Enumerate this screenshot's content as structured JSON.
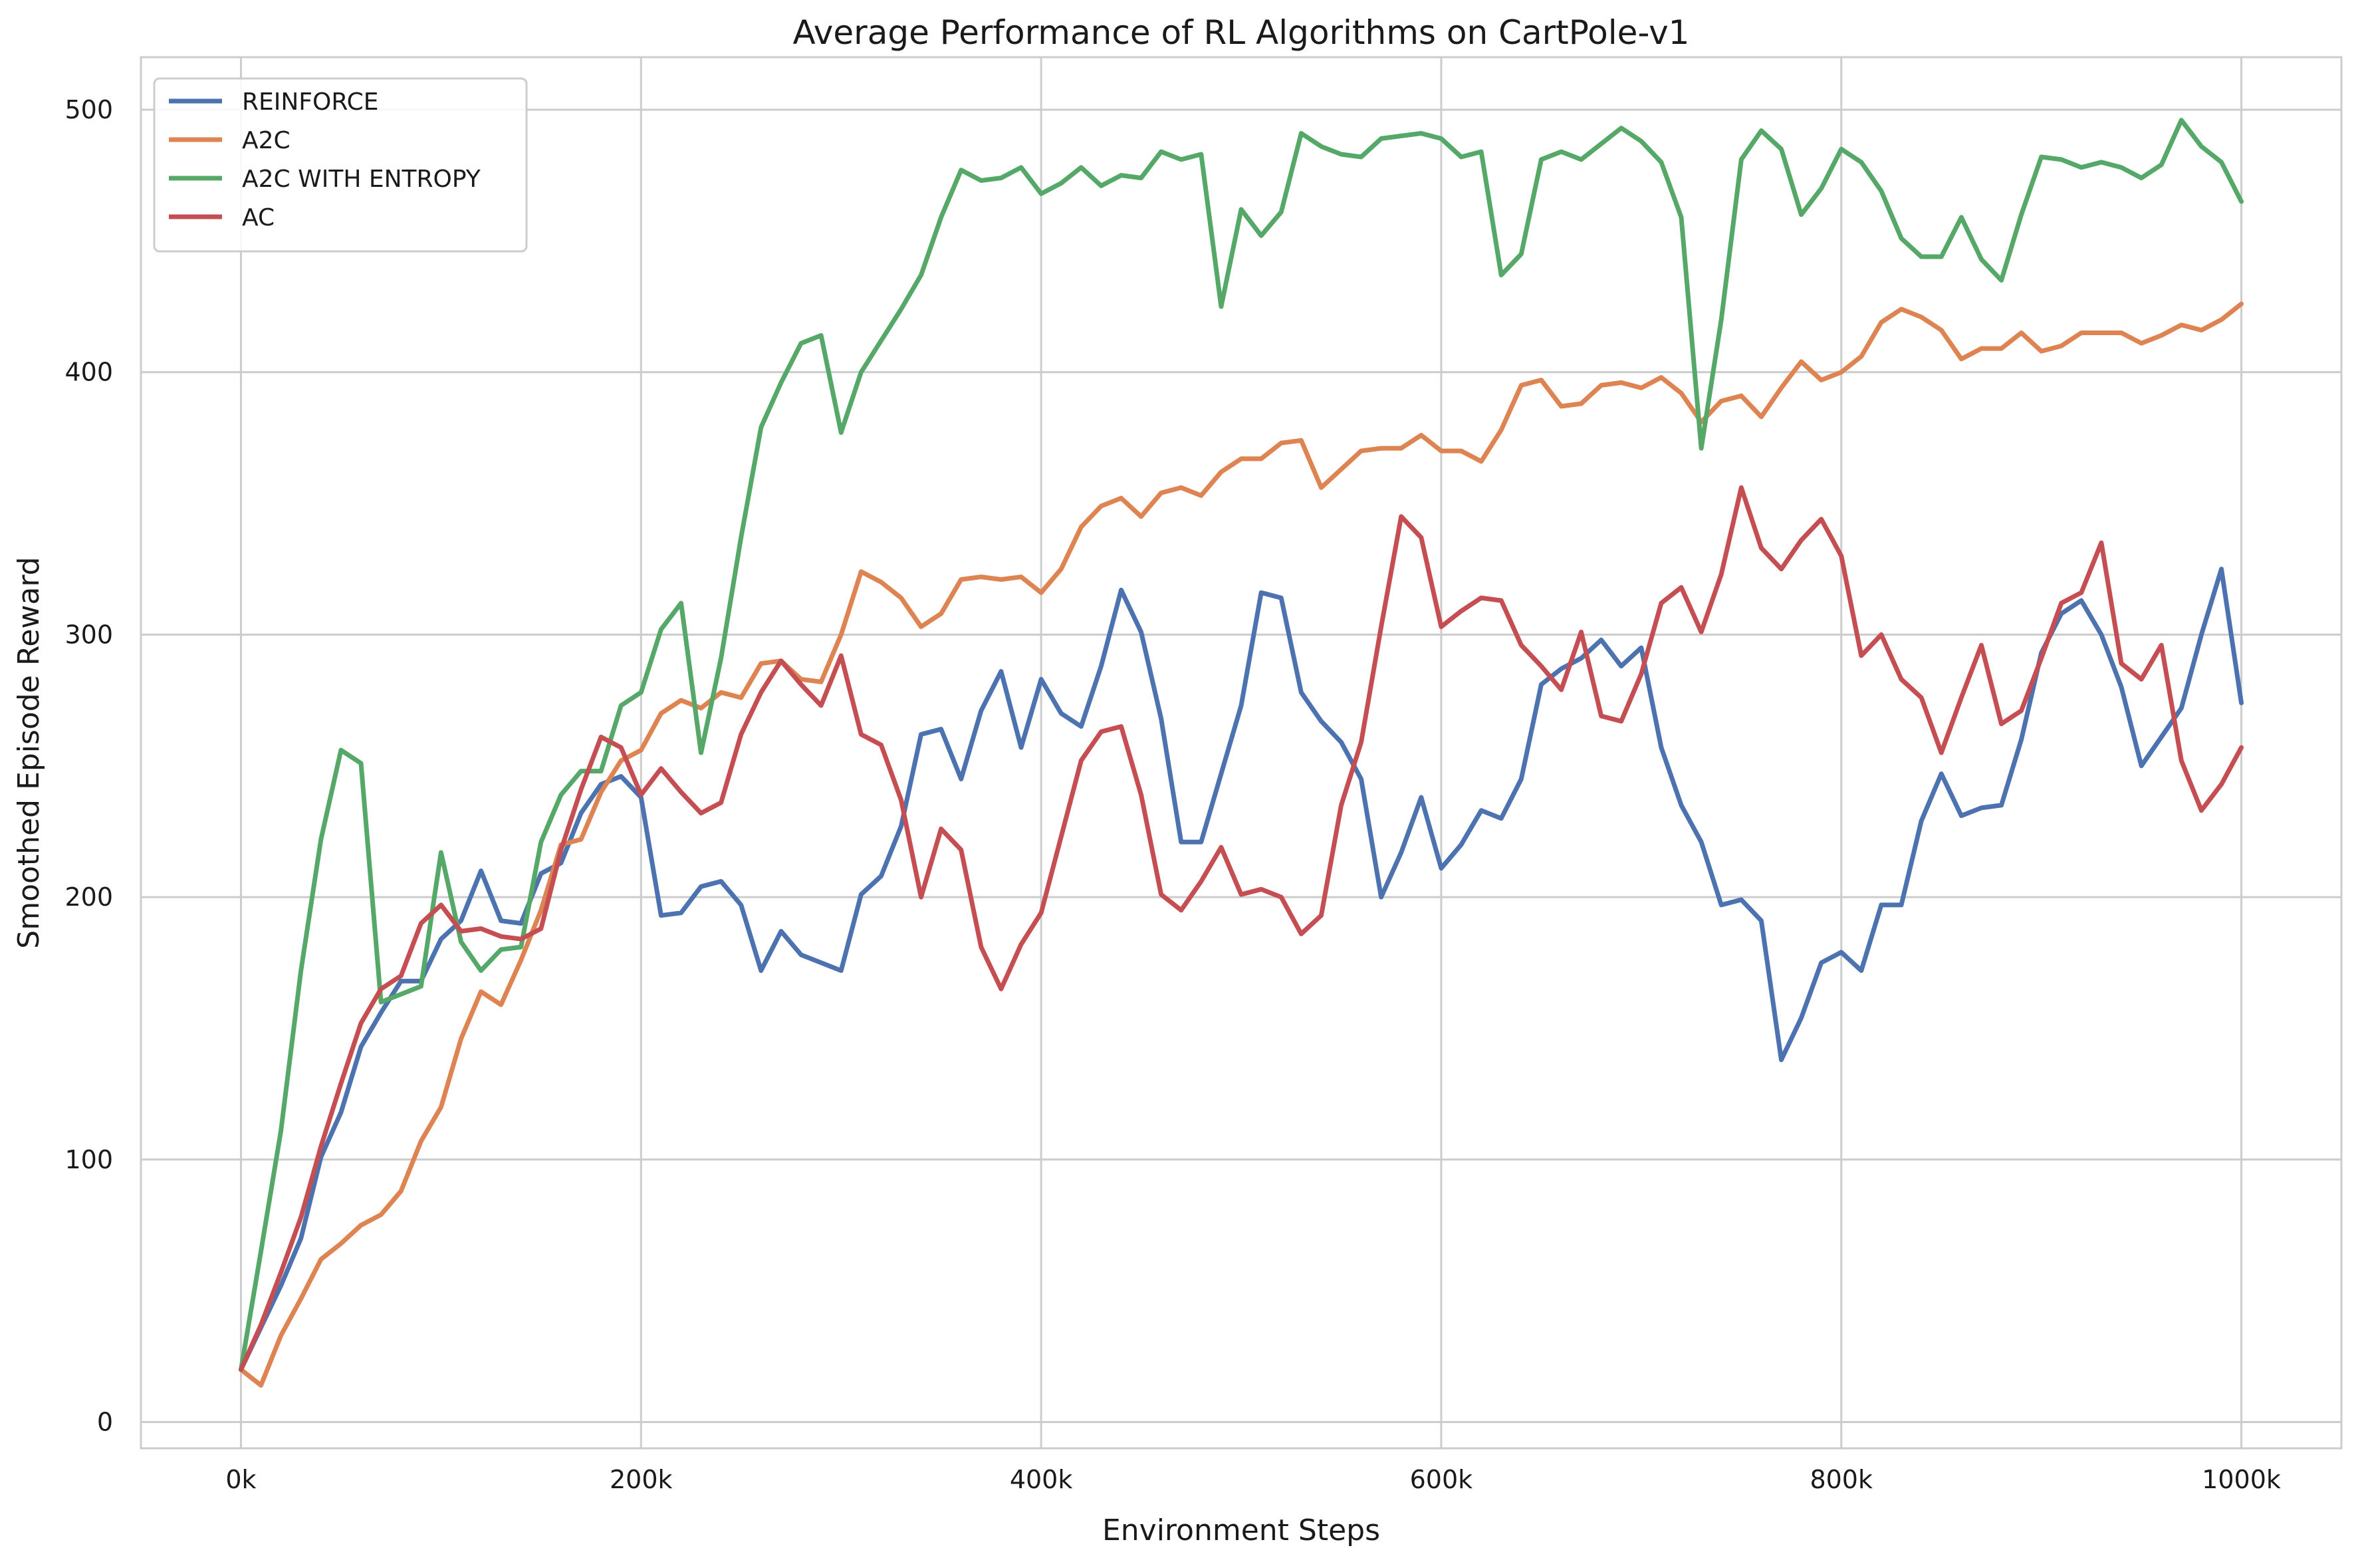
{
  "chart_data": {
    "type": "line",
    "title": "Average Performance of RL Algorithms on CartPole-v1",
    "xlabel": "Environment Steps",
    "ylabel": "Smoothed Episode Reward",
    "xlim": [
      -50000,
      1050000
    ],
    "ylim": [
      -10,
      520
    ],
    "xticks": [
      0,
      200000,
      400000,
      600000,
      800000,
      1000000
    ],
    "xtick_labels": [
      "0k",
      "200k",
      "400k",
      "600k",
      "800k",
      "1000k"
    ],
    "yticks": [
      0,
      100,
      200,
      300,
      400,
      500
    ],
    "ytick_labels": [
      "0",
      "100",
      "200",
      "300",
      "400",
      "500"
    ],
    "grid": true,
    "legend_position": "top-left",
    "x": [
      0,
      10000,
      20000,
      30000,
      40000,
      50000,
      60000,
      70000,
      80000,
      90000,
      100000,
      110000,
      120000,
      130000,
      140000,
      150000,
      160000,
      170000,
      180000,
      190000,
      200000,
      210000,
      220000,
      230000,
      240000,
      250000,
      260000,
      270000,
      280000,
      290000,
      300000,
      310000,
      320000,
      330000,
      340000,
      350000,
      360000,
      370000,
      380000,
      390000,
      400000,
      410000,
      420000,
      430000,
      440000,
      450000,
      460000,
      470000,
      480000,
      490000,
      500000,
      510000,
      520000,
      530000,
      540000,
      550000,
      560000,
      570000,
      580000,
      590000,
      600000,
      610000,
      620000,
      630000,
      640000,
      650000,
      660000,
      670000,
      680000,
      690000,
      700000,
      710000,
      720000,
      730000,
      740000,
      750000,
      760000,
      770000,
      780000,
      790000,
      800000,
      810000,
      820000,
      830000,
      840000,
      850000,
      860000,
      870000,
      880000,
      890000,
      900000,
      910000,
      920000,
      930000,
      940000,
      950000,
      960000,
      970000,
      980000,
      990000,
      1000000
    ],
    "series": [
      {
        "name": "REINFORCE",
        "color": "#4c72b0",
        "values": [
          20,
          36,
          52,
          70,
          101,
          118,
          143,
          156,
          168,
          168,
          184,
          191,
          210,
          191,
          190,
          209,
          213,
          232,
          243,
          246,
          238,
          193,
          194,
          204,
          206,
          197,
          172,
          187,
          178,
          175,
          172,
          201,
          208,
          227,
          262,
          264,
          245,
          271,
          286,
          257,
          283,
          270,
          265,
          288,
          317,
          301,
          268,
          221,
          221,
          247,
          273,
          316,
          314,
          278,
          267,
          259,
          245,
          200,
          217,
          238,
          211,
          220,
          233,
          230,
          245,
          281,
          287,
          291,
          298,
          288,
          295,
          257,
          235,
          221,
          197,
          199,
          191,
          138,
          154,
          175,
          179,
          172,
          197,
          197,
          229,
          247,
          231,
          234,
          235,
          260,
          293,
          308,
          313,
          300,
          280,
          250,
          261,
          272,
          300,
          325,
          274
        ]
      },
      {
        "name": "A2C",
        "color": "#dd8452",
        "values": [
          20,
          14,
          33,
          47,
          62,
          68,
          75,
          79,
          88,
          107,
          120,
          146,
          164,
          159,
          176,
          195,
          220,
          222,
          240,
          252,
          256,
          270,
          275,
          272,
          278,
          276,
          289,
          290,
          283,
          282,
          300,
          324,
          320,
          314,
          303,
          308,
          321,
          322,
          321,
          322,
          316,
          325,
          341,
          349,
          352,
          345,
          354,
          356,
          353,
          362,
          367,
          367,
          373,
          374,
          356,
          363,
          370,
          371,
          371,
          376,
          370,
          370,
          366,
          378,
          395,
          397,
          387,
          388,
          395,
          396,
          394,
          398,
          392,
          381,
          389,
          391,
          383,
          394,
          404,
          397,
          400,
          406,
          419,
          424,
          421,
          416,
          405,
          409,
          409,
          415,
          408,
          410,
          415,
          415,
          415,
          411,
          414,
          418,
          416,
          420,
          426
        ]
      },
      {
        "name": "A2C WITH ENTROPY",
        "color": "#55a868",
        "values": [
          20,
          65,
          111,
          172,
          222,
          256,
          251,
          160,
          163,
          166,
          217,
          183,
          172,
          180,
          181,
          221,
          239,
          248,
          248,
          273,
          278,
          302,
          312,
          255,
          291,
          337,
          379,
          396,
          411,
          414,
          377,
          400,
          412,
          424,
          437,
          459,
          477,
          473,
          474,
          478,
          468,
          472,
          478,
          471,
          475,
          474,
          484,
          481,
          483,
          425,
          462,
          452,
          461,
          491,
          486,
          483,
          482,
          489,
          490,
          491,
          489,
          482,
          484,
          437,
          445,
          481,
          484,
          481,
          487,
          493,
          488,
          480,
          459,
          371,
          420,
          481,
          492,
          485,
          460,
          470,
          485,
          480,
          469,
          451,
          444,
          444,
          459,
          443,
          435,
          460,
          482,
          481,
          478,
          480,
          478,
          474,
          479,
          496,
          486,
          480,
          465
        ]
      },
      {
        "name": "AC",
        "color": "#c44e52",
        "values": [
          20,
          37,
          57,
          78,
          105,
          129,
          152,
          165,
          170,
          190,
          197,
          187,
          188,
          185,
          184,
          188,
          218,
          241,
          261,
          257,
          239,
          249,
          240,
          232,
          236,
          262,
          278,
          290,
          281,
          273,
          292,
          262,
          258,
          237,
          200,
          226,
          218,
          181,
          165,
          182,
          194,
          223,
          252,
          263,
          265,
          239,
          201,
          195,
          206,
          219,
          201,
          203,
          200,
          186,
          193,
          235,
          259,
          303,
          345,
          337,
          303,
          309,
          314,
          313,
          296,
          288,
          279,
          301,
          269,
          267,
          285,
          312,
          318,
          301,
          323,
          356,
          333,
          325,
          336,
          344,
          330,
          292,
          300,
          283,
          276,
          255,
          276,
          296,
          266,
          271,
          291,
          312,
          316,
          335,
          289,
          283,
          296,
          252,
          233,
          243,
          257
        ]
      }
    ]
  }
}
